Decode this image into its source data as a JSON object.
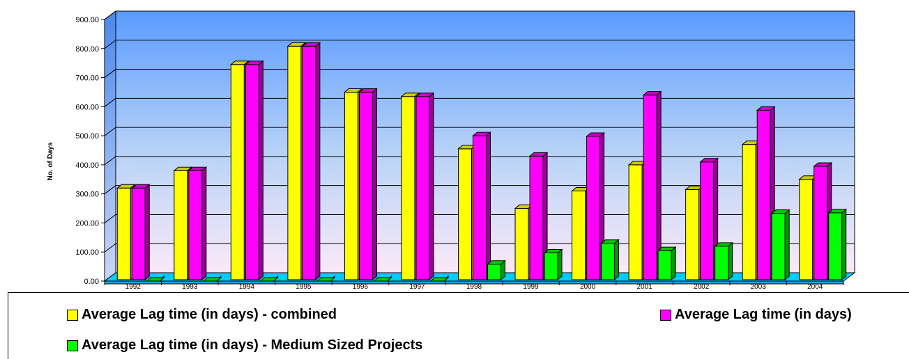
{
  "chart_data": {
    "type": "bar",
    "title": "",
    "xlabel": "",
    "ylabel": "No. of Days",
    "ylim": [
      0,
      900
    ],
    "yticks": [
      "0.00",
      "100.00",
      "200.00",
      "300.00",
      "400.00",
      "500.00",
      "600.00",
      "700.00",
      "800.00",
      "900.00"
    ],
    "categories": [
      "1992",
      "1993",
      "1994",
      "1995",
      "1996",
      "1997",
      "1998",
      "1999",
      "2000",
      "2001",
      "2002",
      "2003",
      "2004"
    ],
    "series": [
      {
        "name": "Average Lag time (in days)  - combined",
        "color": "#ffff00",
        "values": [
          320,
          380,
          745,
          808,
          650,
          635,
          455,
          250,
          310,
          400,
          315,
          470,
          350
        ]
      },
      {
        "name": "Average Lag time (in days)",
        "color": "#ff00ff",
        "values": [
          320,
          380,
          745,
          808,
          650,
          635,
          500,
          430,
          498,
          640,
          410,
          588,
          395
        ]
      },
      {
        "name": "Average Lag time (in days)  - Medium Sized Projects",
        "color": "#00ff00",
        "values": [
          0,
          0,
          0,
          0,
          0,
          0,
          58,
          97,
          130,
          105,
          120,
          233,
          235
        ]
      }
    ],
    "grid": true,
    "legend_position": "bottom",
    "background": "gradient-blue-to-white",
    "floor_color": "#00ccff"
  }
}
